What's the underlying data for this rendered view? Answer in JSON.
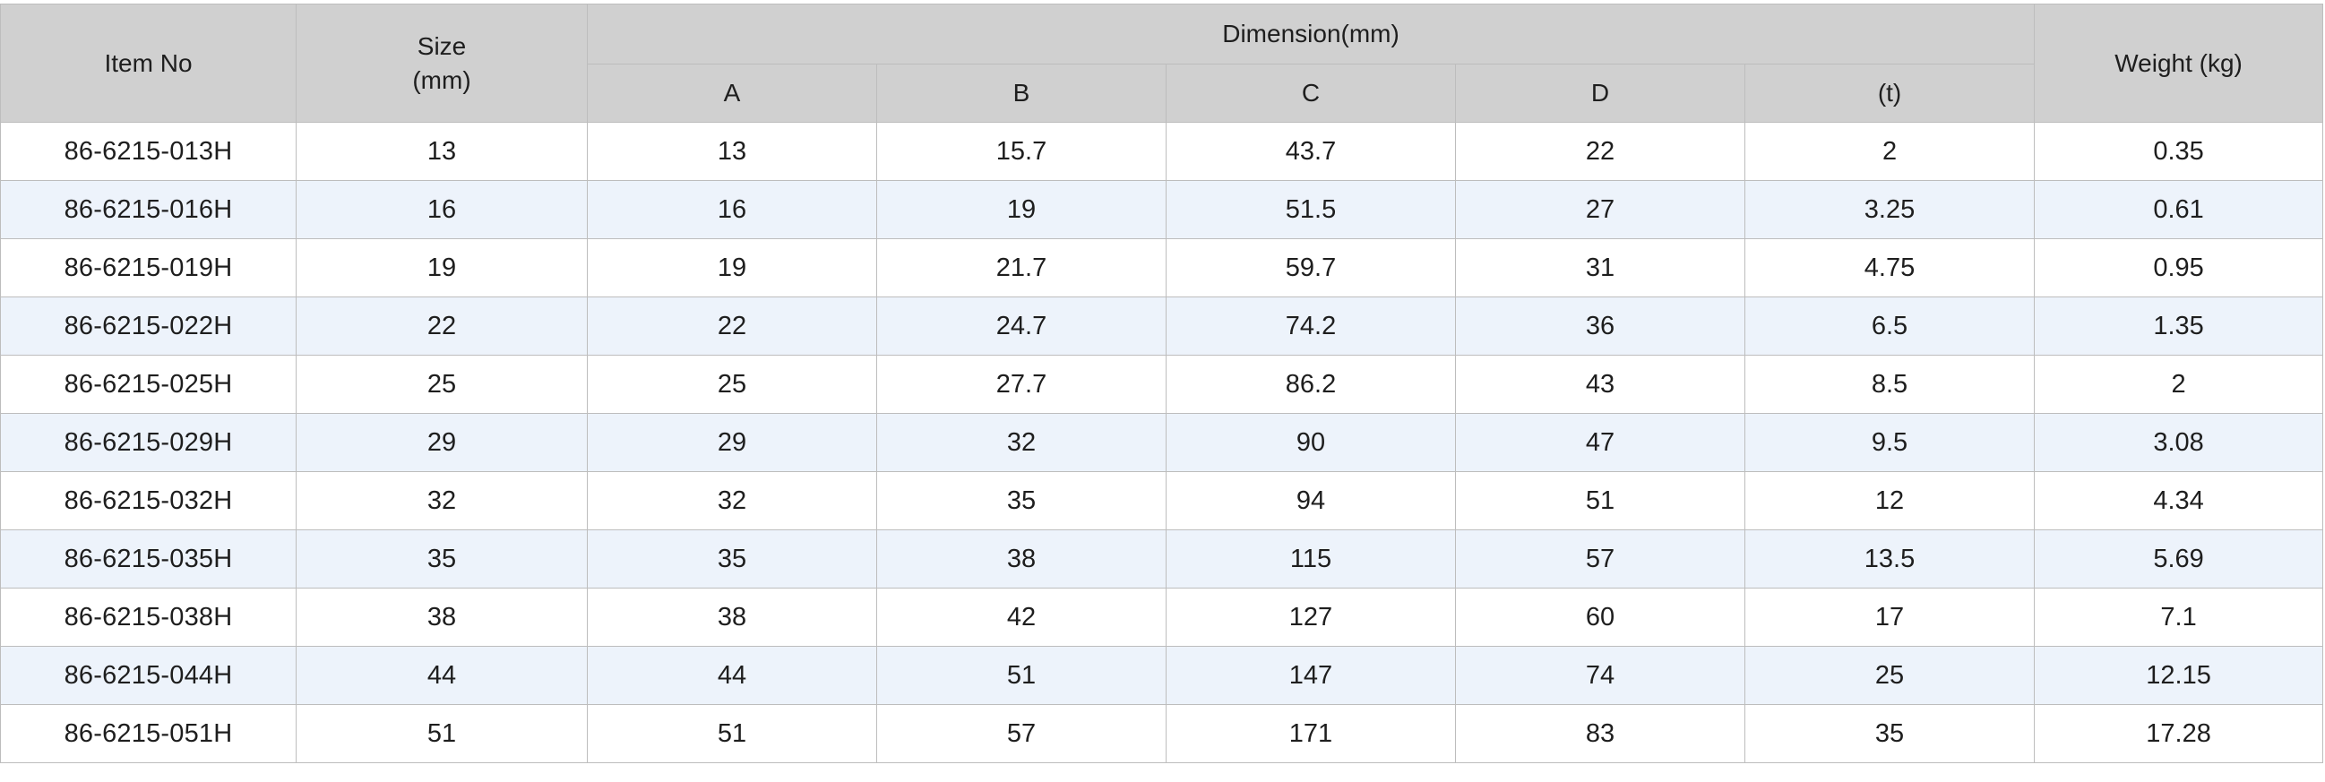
{
  "table": {
    "headers": {
      "item_no": "Item No",
      "size": "Size",
      "size_unit": "(mm)",
      "dimension": "Dimension(mm)",
      "weight": "Weight (kg)",
      "sub": [
        "A",
        "B",
        "C",
        "D",
        "(t)"
      ]
    },
    "rows": [
      [
        "86-6215-013H",
        "13",
        "13",
        "15.7",
        "43.7",
        "22",
        "2",
        "0.35"
      ],
      [
        "86-6215-016H",
        "16",
        "16",
        "19",
        "51.5",
        "27",
        "3.25",
        "0.61"
      ],
      [
        "86-6215-019H",
        "19",
        "19",
        "21.7",
        "59.7",
        "31",
        "4.75",
        "0.95"
      ],
      [
        "86-6215-022H",
        "22",
        "22",
        "24.7",
        "74.2",
        "36",
        "6.5",
        "1.35"
      ],
      [
        "86-6215-025H",
        "25",
        "25",
        "27.7",
        "86.2",
        "43",
        "8.5",
        "2"
      ],
      [
        "86-6215-029H",
        "29",
        "29",
        "32",
        "90",
        "47",
        "9.5",
        "3.08"
      ],
      [
        "86-6215-032H",
        "32",
        "32",
        "35",
        "94",
        "51",
        "12",
        "4.34"
      ],
      [
        "86-6215-035H",
        "35",
        "35",
        "38",
        "115",
        "57",
        "13.5",
        "5.69"
      ],
      [
        "86-6215-038H",
        "38",
        "38",
        "42",
        "127",
        "60",
        "17",
        "7.1"
      ],
      [
        "86-6215-044H",
        "44",
        "44",
        "51",
        "147",
        "74",
        "25",
        "12.15"
      ],
      [
        "86-6215-051H",
        "51",
        "51",
        "57",
        "171",
        "83",
        "35",
        "17.28"
      ]
    ]
  },
  "colors": {
    "header_bg": "#d0d0d0",
    "stripe_bg": "#edf3fb",
    "border": "#bdbdbd",
    "text": "#1e1e1e"
  }
}
